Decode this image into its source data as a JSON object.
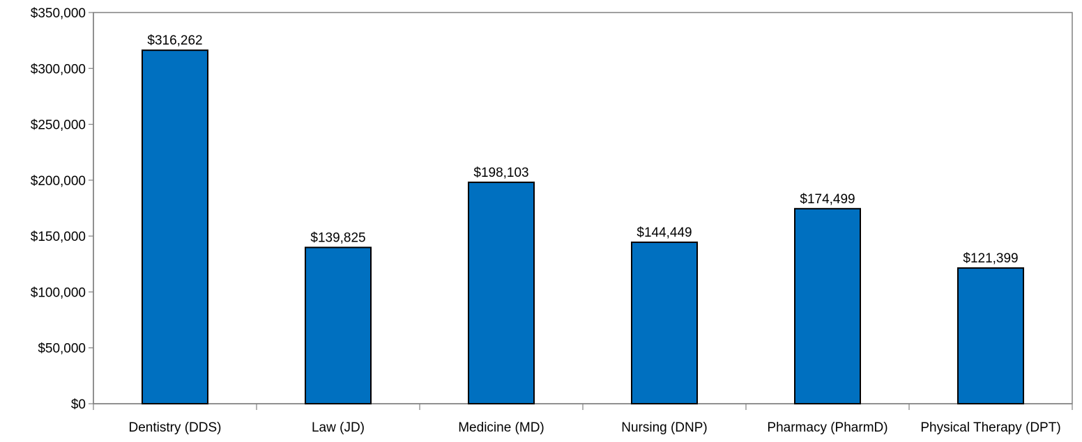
{
  "chart_data": {
    "type": "bar",
    "title": "",
    "xlabel": "",
    "ylabel": "",
    "categories": [
      "Dentistry (DDS)",
      "Law (JD)",
      "Medicine (MD)",
      "Nursing (DNP)",
      "Pharmacy (PharmD)",
      "Physical Therapy (DPT)"
    ],
    "values": [
      316262,
      139825,
      198103,
      144449,
      174499,
      121399
    ],
    "value_labels": [
      "$316,262",
      "$139,825",
      "$198,103",
      "$144,449",
      "$174,499",
      "$121,399"
    ],
    "ylim": [
      0,
      350000
    ],
    "yticks": [
      0,
      50000,
      100000,
      150000,
      200000,
      250000,
      300000,
      350000
    ],
    "ytick_labels": [
      "$0",
      "$50,000",
      "$100,000",
      "$150,000",
      "$200,000",
      "$250,000",
      "$300,000",
      "$350,000"
    ],
    "grid": false,
    "legend": "none",
    "bar_color": "#0070C0",
    "bar_edge_color": "#000000",
    "frame_color": "#808080"
  }
}
